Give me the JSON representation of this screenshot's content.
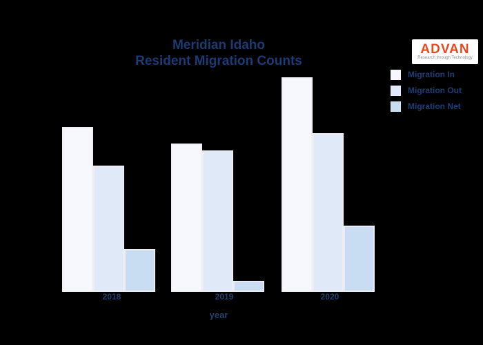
{
  "title": {
    "line1": "Meridian Idaho",
    "line2": "Resident Migration Counts"
  },
  "logo": {
    "name": "ADVAN",
    "tagline": "Research through Technology",
    "name_color": "#e8491f"
  },
  "legend": [
    {
      "label": "Migration In",
      "color": "#f7f8fd"
    },
    {
      "label": "Migration Out",
      "color": "#dfe9f7"
    },
    {
      "label": "Migration Net",
      "color": "#c9ddf2"
    }
  ],
  "xaxis": {
    "title": "year",
    "ticks": [
      "2018",
      "2019",
      "2020"
    ]
  },
  "chart_data": {
    "type": "bar",
    "title": "Meridian Idaho Resident Migration Counts",
    "categories": [
      "2018",
      "2019",
      "2020"
    ],
    "series": [
      {
        "name": "Migration In",
        "color": "#f7f8fd",
        "values": [
          7700,
          6900,
          10000
        ]
      },
      {
        "name": "Migration Out",
        "color": "#dfe9f7",
        "values": [
          5900,
          6600,
          7400
        ]
      },
      {
        "name": "Migration Net",
        "color": "#c9ddf2",
        "values": [
          2000,
          500,
          3100
        ]
      }
    ],
    "xlabel": "year",
    "ylabel": "",
    "ylim": [
      0,
      10500
    ],
    "grid": false,
    "legend_position": "top-right"
  },
  "colors": {
    "background": "#000000",
    "text": "#1d3a72"
  }
}
